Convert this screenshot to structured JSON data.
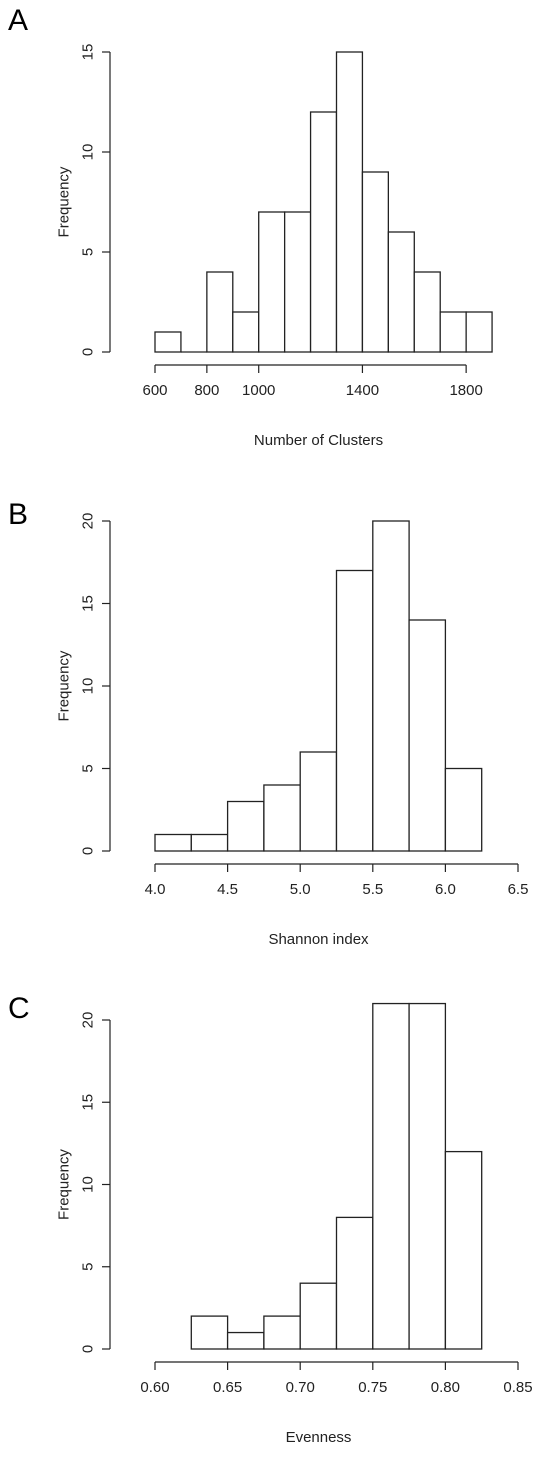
{
  "panels": [
    {
      "letter": "A"
    },
    {
      "letter": "B"
    },
    {
      "letter": "C"
    }
  ],
  "chart_data": [
    {
      "type": "bar",
      "title": "",
      "xlabel": "Number of Clusters",
      "ylabel": "Frequency",
      "bin_edges": [
        600,
        700,
        800,
        900,
        1000,
        1100,
        1200,
        1300,
        1400,
        1500,
        1600,
        1700,
        1800,
        1900
      ],
      "values": [
        1,
        0,
        4,
        2,
        7,
        7,
        12,
        15,
        9,
        6,
        4,
        2,
        2
      ],
      "xlim": [
        600,
        2000
      ],
      "ylim": [
        0,
        15
      ],
      "xticks": [
        600,
        800,
        1000,
        1400,
        1800
      ],
      "xtick_labels": [
        "600",
        "800",
        "1000",
        "1400",
        "1800"
      ],
      "yticks": [
        0,
        5,
        10,
        15
      ],
      "ytick_labels": [
        "0",
        "5",
        "10",
        "15"
      ],
      "grid": false
    },
    {
      "type": "bar",
      "title": "",
      "xlabel": "Shannon index",
      "ylabel": "Frequency",
      "bin_edges": [
        4.0,
        4.25,
        4.5,
        4.75,
        5.0,
        5.25,
        5.5,
        5.75,
        6.0,
        6.25
      ],
      "values": [
        1,
        1,
        3,
        4,
        6,
        17,
        20,
        14,
        5
      ],
      "xlim": [
        4.0,
        6.5
      ],
      "ylim": [
        0,
        20
      ],
      "xticks": [
        4.0,
        4.5,
        5.0,
        5.5,
        6.0,
        6.5
      ],
      "xtick_labels": [
        "4.0",
        "4.5",
        "5.0",
        "5.5",
        "6.0",
        "6.5"
      ],
      "yticks": [
        0,
        5,
        10,
        15,
        20
      ],
      "ytick_labels": [
        "0",
        "5",
        "10",
        "15",
        "20"
      ],
      "grid": false
    },
    {
      "type": "bar",
      "title": "",
      "xlabel": "Evenness",
      "ylabel": "Frequency",
      "bin_edges": [
        0.625,
        0.65,
        0.675,
        0.7,
        0.725,
        0.75,
        0.775,
        0.8,
        0.825
      ],
      "values": [
        2,
        1,
        2,
        4,
        8,
        21,
        21,
        12
      ],
      "xlim": [
        0.6,
        0.85
      ],
      "ylim": [
        0,
        20
      ],
      "xticks": [
        0.6,
        0.65,
        0.7,
        0.75,
        0.8,
        0.85
      ],
      "xtick_labels": [
        "0.60",
        "0.65",
        "0.70",
        "0.75",
        "0.80",
        "0.85"
      ],
      "yticks": [
        0,
        5,
        10,
        15,
        20
      ],
      "ytick_labels": [
        "0",
        "5",
        "10",
        "15",
        "20"
      ],
      "grid": false
    }
  ]
}
